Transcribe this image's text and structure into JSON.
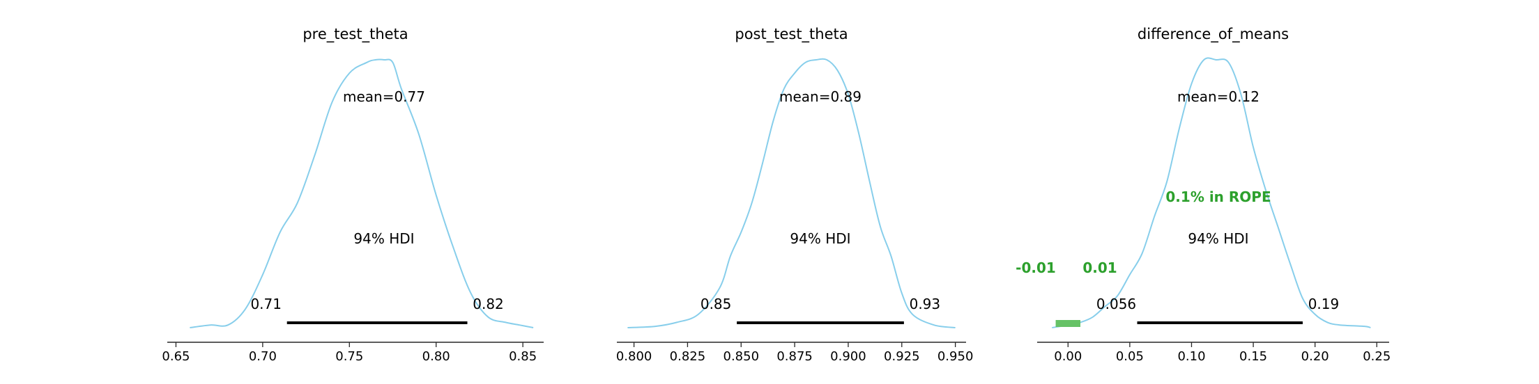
{
  "colors": {
    "kde": "#87ceeb",
    "hdi": "#000000",
    "rope_text": "#2ca02c",
    "rope_bar": "#66c266",
    "axis": "#262626"
  },
  "hdi_label": "94% HDI",
  "chart_data": [
    {
      "type": "area",
      "title": "pre_test_theta",
      "xlim": [
        0.645,
        0.862
      ],
      "xticks": [
        "0.65",
        "0.70",
        "0.75",
        "0.80",
        "0.85"
      ],
      "xtick_values": [
        0.65,
        0.7,
        0.75,
        0.8,
        0.85
      ],
      "mean_label": "mean=0.77",
      "hdi": [
        0.714,
        0.818
      ],
      "hdi_labels": [
        "0.71",
        "0.82"
      ],
      "density": {
        "x": [
          0.658,
          0.67,
          0.68,
          0.69,
          0.7,
          0.71,
          0.72,
          0.73,
          0.74,
          0.75,
          0.76,
          0.765,
          0.77,
          0.775,
          0.78,
          0.79,
          0.8,
          0.81,
          0.82,
          0.83,
          0.84,
          0.848,
          0.856
        ],
        "y": [
          0.0,
          0.01,
          0.01,
          0.07,
          0.2,
          0.36,
          0.47,
          0.65,
          0.85,
          0.96,
          1.0,
          1.01,
          1.01,
          1.0,
          0.9,
          0.73,
          0.5,
          0.3,
          0.13,
          0.04,
          0.02,
          0.01,
          0.0
        ]
      }
    },
    {
      "type": "area",
      "title": "post_test_theta",
      "xlim": [
        0.792,
        0.955
      ],
      "xticks": [
        "0.800",
        "0.825",
        "0.850",
        "0.875",
        "0.900",
        "0.925",
        "0.950"
      ],
      "xtick_values": [
        0.8,
        0.825,
        0.85,
        0.875,
        0.9,
        0.925,
        0.95
      ],
      "mean_label": "mean=0.89",
      "hdi": [
        0.848,
        0.926
      ],
      "hdi_labels": [
        "0.85",
        "0.93"
      ],
      "density": {
        "x": [
          0.797,
          0.81,
          0.82,
          0.83,
          0.84,
          0.845,
          0.85,
          0.855,
          0.86,
          0.865,
          0.87,
          0.875,
          0.88,
          0.885,
          0.89,
          0.895,
          0.9,
          0.905,
          0.91,
          0.915,
          0.92,
          0.925,
          0.93,
          0.94,
          0.95
        ],
        "y": [
          0.0,
          0.005,
          0.02,
          0.05,
          0.15,
          0.27,
          0.36,
          0.47,
          0.62,
          0.78,
          0.9,
          0.96,
          1.0,
          1.01,
          1.01,
          0.97,
          0.88,
          0.73,
          0.55,
          0.38,
          0.27,
          0.13,
          0.05,
          0.01,
          0.0
        ]
      }
    },
    {
      "type": "area",
      "title": "difference_of_means",
      "xlim": [
        -0.025,
        0.26
      ],
      "xticks": [
        "0.00",
        "0.05",
        "0.10",
        "0.15",
        "0.20",
        "0.25"
      ],
      "xtick_values": [
        0.0,
        0.05,
        0.1,
        0.15,
        0.2,
        0.25
      ],
      "mean_label": "mean=0.12",
      "hdi": [
        0.056,
        0.19
      ],
      "hdi_labels": [
        "0.056",
        "0.19"
      ],
      "rope": [
        -0.01,
        0.01
      ],
      "rope_labels": [
        "-0.01",
        "0.01"
      ],
      "rope_text": "0.1% in ROPE",
      "density": {
        "x": [
          -0.013,
          0.0,
          0.01,
          0.02,
          0.03,
          0.04,
          0.05,
          0.06,
          0.07,
          0.08,
          0.09,
          0.1,
          0.11,
          0.12,
          0.13,
          0.14,
          0.15,
          0.16,
          0.17,
          0.18,
          0.19,
          0.2,
          0.21,
          0.22,
          0.24,
          0.245
        ],
        "y": [
          0.0,
          0.01,
          0.02,
          0.04,
          0.08,
          0.12,
          0.2,
          0.28,
          0.42,
          0.55,
          0.75,
          0.92,
          1.01,
          1.01,
          1.0,
          0.88,
          0.68,
          0.52,
          0.38,
          0.24,
          0.11,
          0.05,
          0.02,
          0.01,
          0.005,
          0.0
        ]
      }
    }
  ]
}
